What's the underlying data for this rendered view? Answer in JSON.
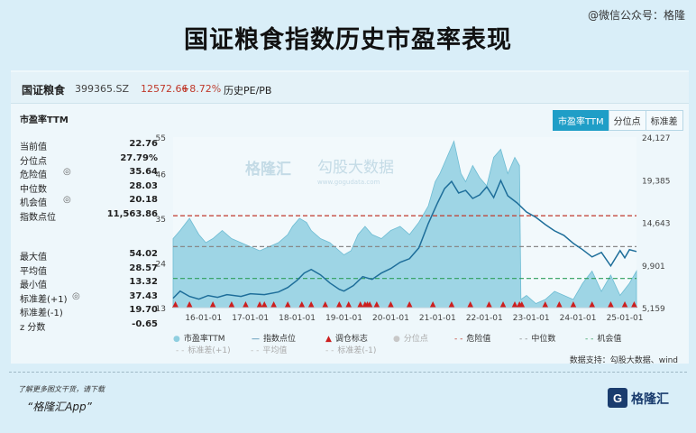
{
  "page": {
    "title": "国证粮食指数历史市盈率表现",
    "wechat_watermark": "@微信公众号：格隆",
    "stock_name": "国证粮食",
    "stock_code": "399365.SZ",
    "price": "12572.66",
    "change": "+8.72%",
    "history_label": "历史PE/PB",
    "metric_label": "市盈率TTM",
    "tabs": [
      "市盈率TTM",
      "分位点",
      "标准差"
    ],
    "data_source": "数据支持：勾股大数据、wind",
    "footer_note": "了解更多图文干货，请下载",
    "footer_app": "“格隆汇App”",
    "logo_text": "格隆汇",
    "chart_watermark_1": "格隆汇",
    "chart_watermark_2": "勾股大数据",
    "chart_watermark_sub": "www.gogudata.com",
    "colors": {
      "accent": "#1f9ec7",
      "area": "#8fcfe0",
      "index_line": "#1e6e9a",
      "danger": "#c0392b",
      "median": "#888888",
      "opportunity": "#2e9e5b",
      "marker": "#cc1f1f"
    }
  },
  "stats": {
    "group1": [
      {
        "label": "当前值",
        "value": "22.76"
      },
      {
        "label": "分位点",
        "value": "27.79%"
      },
      {
        "label": "危险值",
        "value": "35.64"
      },
      {
        "label": "中位数",
        "value": "28.03"
      },
      {
        "label": "机会值",
        "value": "20.18"
      },
      {
        "label": "指数点位",
        "value": "11,563.86"
      }
    ],
    "group2": [
      {
        "label": "最大值",
        "value": "54.02"
      },
      {
        "label": "平均值",
        "value": "28.57"
      },
      {
        "label": "最小值",
        "value": "13.32"
      },
      {
        "label": "标准差(+1)",
        "value": "37.43"
      },
      {
        "label": "标准差(-1)",
        "value": "19.70"
      },
      {
        "label": "z 分数",
        "value": "-0.65"
      }
    ]
  },
  "chart_data": {
    "type": "area",
    "x_ticks": [
      "16-01-01",
      "17-01-01",
      "18-01-01",
      "19-01-01",
      "20-01-01",
      "21-01-01",
      "22-01-01",
      "23-01-01",
      "24-01-01",
      "25-01-01"
    ],
    "y_left_ticks": [
      "55",
      "46",
      "35",
      "24",
      "13"
    ],
    "y_right_ticks": [
      "24,127",
      "19,385",
      "14,643",
      "9,901",
      "5,159"
    ],
    "ylim_left": [
      13,
      55
    ],
    "ylim_right": [
      5159,
      24127
    ],
    "xlim": [
      2015.35,
      2025.25
    ],
    "reference_lines": {
      "danger": 35.64,
      "median": 28.03,
      "opportunity": 20.18
    },
    "series": [
      {
        "name": "市盈率TTM",
        "axis": "left",
        "x": [
          2015.35,
          2015.5,
          2015.7,
          2015.9,
          2016.05,
          2016.2,
          2016.4,
          2016.6,
          2016.8,
          2017.0,
          2017.2,
          2017.4,
          2017.6,
          2017.8,
          2017.9,
          2018.05,
          2018.2,
          2018.3,
          2018.5,
          2018.7,
          2018.9,
          2019.0,
          2019.15,
          2019.3,
          2019.45,
          2019.6,
          2019.8,
          2020.0,
          2020.2,
          2020.4,
          2020.6,
          2020.8,
          2020.95,
          2021.05,
          2021.2,
          2021.35,
          2021.5,
          2021.6,
          2021.75,
          2021.9,
          2022.05,
          2022.2,
          2022.35,
          2022.5,
          2022.65,
          2022.75,
          2022.78,
          2022.9,
          2023.1,
          2023.3,
          2023.5,
          2023.7,
          2023.9,
          2024.1,
          2024.3,
          2024.5,
          2024.7,
          2024.9,
          2025.1,
          2025.25
        ],
        "values": [
          30,
          32,
          35,
          31,
          29,
          30,
          32,
          30,
          29,
          28,
          27,
          28,
          29,
          31,
          33,
          35,
          34,
          32,
          30,
          29,
          27,
          26,
          27,
          31,
          33,
          31,
          30,
          32,
          33,
          31,
          34,
          38,
          44,
          46,
          50,
          54,
          46,
          44,
          48,
          45,
          43,
          50,
          52,
          46,
          50,
          48,
          15,
          16,
          14,
          15,
          17,
          16,
          15,
          19,
          22,
          17,
          21,
          16,
          19,
          22
        ]
      },
      {
        "name": "指数点位",
        "axis": "right",
        "x": [
          2015.35,
          2015.5,
          2015.7,
          2015.9,
          2016.1,
          2016.3,
          2016.5,
          2016.8,
          2017.0,
          2017.3,
          2017.6,
          2017.8,
          2018.0,
          2018.15,
          2018.3,
          2018.5,
          2018.7,
          2018.9,
          2019.0,
          2019.2,
          2019.4,
          2019.6,
          2019.8,
          2020.0,
          2020.2,
          2020.4,
          2020.6,
          2020.8,
          2021.0,
          2021.15,
          2021.3,
          2021.45,
          2021.6,
          2021.75,
          2021.9,
          2022.05,
          2022.2,
          2022.35,
          2022.5,
          2022.7,
          2022.9,
          2023.1,
          2023.3,
          2023.5,
          2023.7,
          2023.9,
          2024.1,
          2024.3,
          2024.5,
          2024.7,
          2024.9,
          2025.0,
          2025.1,
          2025.25
        ],
        "values": [
          6200,
          7000,
          6400,
          6100,
          6500,
          6300,
          6600,
          6400,
          6700,
          6600,
          6900,
          7400,
          8200,
          9000,
          9400,
          8800,
          7900,
          7200,
          7000,
          7600,
          8600,
          8300,
          9000,
          9500,
          10200,
          10600,
          11800,
          14500,
          16800,
          18400,
          19200,
          17900,
          18200,
          17300,
          17700,
          18600,
          17400,
          19300,
          17600,
          16800,
          15800,
          15200,
          14400,
          13700,
          13200,
          12300,
          11600,
          10800,
          11300,
          9800,
          11500,
          10700,
          11600,
          11400
        ]
      }
    ],
    "adjustment_markers_x": [
      2015.4,
      2015.7,
      2016.2,
      2016.6,
      2016.9,
      2017.2,
      2017.3,
      2017.5,
      2017.8,
      2018.1,
      2018.3,
      2018.6,
      2018.9,
      2019.1,
      2019.35,
      2019.45,
      2019.5,
      2019.55,
      2019.7,
      2020.0,
      2020.4,
      2020.9,
      2021.3,
      2021.7,
      2022.1,
      2022.4,
      2022.65,
      2022.75,
      2022.8,
      2023.3,
      2023.6,
      2023.9,
      2024.3,
      2024.7,
      2025.0,
      2025.2
    ],
    "legend": [
      "市盈率TTM",
      "指数点位",
      "调仓标志",
      "分位点",
      "危险值",
      "中位数",
      "机会值",
      "标准差(+1)",
      "平均值",
      "标准差(-1)"
    ]
  }
}
